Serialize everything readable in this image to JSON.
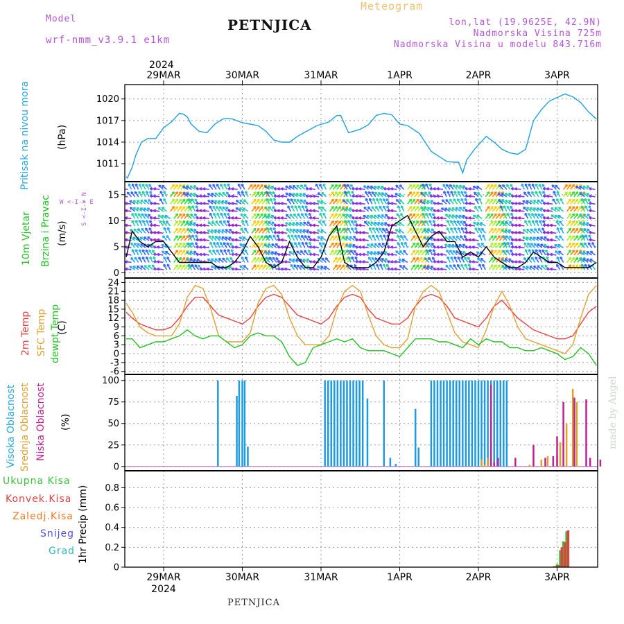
{
  "header": {
    "model_label": "Model",
    "model_name": "wrf-nmm_v3.9.1  e1km",
    "title": "PETNJICA",
    "meteogram": "Meteogram",
    "lonlat": "lon,lat (19.9625E, 42.9N)",
    "altitude": "Nadmorska Visina 725m",
    "model_altitude": "Nadmorska Visina u modelu 843.716m",
    "year_top": "2024",
    "footer_title": "PETNJICA",
    "watermark": "made by Angel"
  },
  "axis_dates": {
    "top": [
      "29MAR",
      "30MAR",
      "31MAR",
      "1APR",
      "2APR",
      "3APR"
    ],
    "bottom": [
      "29MAR",
      "30MAR",
      "31MAR",
      "1APR",
      "2APR",
      "3APR"
    ],
    "bottom_year": "2024"
  },
  "colors": {
    "pressure": "#1aa0e0",
    "temp2m": "#e84040",
    "sfc": "#e0a030",
    "dewpt": "#22c022",
    "high_cloud": "#1e9be0",
    "mid_cloud": "#e0a020",
    "low_cloud": "#c02090",
    "wind_speed": "#000000",
    "gust_marker": "#e05050"
  },
  "panels": {
    "pressure": {
      "label": "Pritisak na nivou mora",
      "unit": "(hPa)",
      "label_color": "#28a8e0"
    },
    "wind": {
      "label1": "10m Vjetar",
      "label2": "Brzina i Pravac",
      "unit": "(m/s)",
      "compass": "W <-I-> E",
      "compass_v": "S <-I-> N"
    },
    "temp": {
      "label1": "2m Temp",
      "label2": "SFC Temp",
      "label3": "dewpt Temp",
      "unit": "(C)"
    },
    "cloud": {
      "label1": "Visoka Oblacnost",
      "label2": "Srednja Oblacnost",
      "label3": "Niska Oblacnost",
      "unit": "(%)"
    },
    "precip": {
      "unit": "1hr Precip (mm)",
      "legend": [
        {
          "label": "Ukupna Kisa",
          "color": "#3cc03c"
        },
        {
          "label": "Konvek.Kisa",
          "color": "#e04040"
        },
        {
          "label": "Zaledj.Kisa",
          "color": "#f07828"
        },
        {
          "label": "Snijeg",
          "color": "#5050e0"
        },
        {
          "label": "Grad",
          "color": "#30b8b8"
        }
      ]
    }
  },
  "chart_data": [
    {
      "type": "line",
      "name": "pressure",
      "ylabel": "Pritisak na nivou mora (hPa)",
      "yticks": [
        1011,
        1014,
        1017,
        1020
      ],
      "ylim": [
        1008.5,
        1022
      ],
      "xlim": [
        0,
        6
      ],
      "series": [
        {
          "name": "Pritisak na nivou mora",
          "x": [
            0,
            0.04,
            0.1,
            0.15,
            0.22,
            0.3,
            0.4,
            0.5,
            0.6,
            0.7,
            0.75,
            0.8,
            0.85,
            0.95,
            1.05,
            1.15,
            1.25,
            1.3,
            1.38,
            1.5,
            1.6,
            1.7,
            1.8,
            1.9,
            2.0,
            2.1,
            2.2,
            2.3,
            2.45,
            2.6,
            2.7,
            2.75,
            2.85,
            3.0,
            3.1,
            3.2,
            3.3,
            3.4,
            3.5,
            3.6,
            3.75,
            3.9,
            4.0,
            4.1,
            4.2,
            4.25,
            4.3,
            4.35,
            4.45,
            4.6,
            4.7,
            4.8,
            4.9,
            5.0,
            5.1,
            5.15,
            5.2,
            5.3,
            5.4,
            5.5,
            5.6,
            5.7,
            5.8,
            5.9,
            6.0
          ],
          "values": [
            1009.2,
            1009.0,
            1010.5,
            1012.3,
            1014.0,
            1014.5,
            1014.5,
            1016.0,
            1016.8,
            1018.0,
            1017.9,
            1017.5,
            1016.5,
            1015.5,
            1015.3,
            1016.5,
            1017.2,
            1017.3,
            1017.2,
            1016.7,
            1016.5,
            1016.3,
            1015.5,
            1014.3,
            1014.0,
            1014.0,
            1014.8,
            1015.4,
            1016.3,
            1016.8,
            1017.7,
            1017.7,
            1015.3,
            1015.8,
            1016.4,
            1017.7,
            1018.0,
            1017.8,
            1016.5,
            1016.3,
            1015.2,
            1012.7,
            1012.0,
            1011.3,
            1011.2,
            1011.2,
            1009.7,
            1011.5,
            1013.0,
            1014.8,
            1014.0,
            1013.0,
            1012.5,
            1012.3,
            1013.0,
            1015.0,
            1017.0,
            1018.5,
            1019.7,
            1020.2,
            1020.7,
            1020.3,
            1019.5,
            1018.2,
            1017.2
          ]
        }
      ]
    },
    {
      "type": "line",
      "name": "wind",
      "ylabel": "10m Vjetar Brzina i Pravac (m/s)",
      "yticks": [
        0,
        5,
        10,
        15
      ],
      "ylim": [
        -1,
        17.5
      ],
      "xlim": [
        0,
        6
      ],
      "series": [
        {
          "name": "Brzina",
          "x": [
            0,
            0.1,
            0.2,
            0.3,
            0.4,
            0.5,
            0.6,
            0.7,
            0.8,
            0.9,
            1.0,
            1.1,
            1.2,
            1.3,
            1.4,
            1.5,
            1.6,
            1.7,
            1.8,
            1.9,
            2.0,
            2.1,
            2.2,
            2.3,
            2.4,
            2.5,
            2.6,
            2.7,
            2.8,
            2.9,
            3.0,
            3.1,
            3.2,
            3.3,
            3.4,
            3.5,
            3.6,
            3.7,
            3.8,
            3.9,
            4.0,
            4.1,
            4.2,
            4.3,
            4.4,
            4.5,
            4.6,
            4.7,
            4.8,
            4.9,
            5.0,
            5.1,
            5.2,
            5.3,
            5.4,
            5.5,
            5.6,
            5.7,
            5.8,
            5.9,
            6.0
          ],
          "values": [
            3,
            8,
            6,
            5,
            6,
            6,
            4,
            2,
            2,
            2,
            2,
            2,
            1,
            1,
            2,
            4,
            7,
            5,
            2,
            1,
            2,
            6,
            3,
            1,
            1,
            3,
            7,
            9,
            2,
            1,
            1,
            1,
            2,
            4,
            9,
            10,
            11,
            8,
            5,
            7,
            8,
            6,
            6,
            3,
            4,
            3,
            5,
            3,
            2,
            1,
            1,
            2,
            4,
            3,
            2,
            2,
            1,
            1,
            1,
            1,
            2
          ]
        }
      ]
    },
    {
      "type": "line",
      "name": "temperature",
      "ylabel": "2m Temp / SFC Temp / dewpt Temp (C)",
      "yticks": [
        -6,
        -3,
        0,
        3,
        6,
        9,
        12,
        15,
        18,
        21,
        24
      ],
      "ylim": [
        -7,
        25.5
      ],
      "xlim": [
        0,
        6
      ],
      "series": [
        {
          "name": "2m Temp",
          "x": [
            0,
            0.1,
            0.2,
            0.3,
            0.4,
            0.5,
            0.6,
            0.7,
            0.8,
            0.9,
            1.0,
            1.1,
            1.2,
            1.3,
            1.4,
            1.5,
            1.6,
            1.7,
            1.8,
            1.9,
            2.0,
            2.1,
            2.2,
            2.3,
            2.4,
            2.5,
            2.6,
            2.7,
            2.8,
            2.9,
            3.0,
            3.1,
            3.2,
            3.3,
            3.4,
            3.5,
            3.6,
            3.7,
            3.8,
            3.9,
            4.0,
            4.1,
            4.2,
            4.3,
            4.4,
            4.5,
            4.6,
            4.7,
            4.8,
            4.9,
            5.0,
            5.1,
            5.2,
            5.3,
            5.4,
            5.5,
            5.6,
            5.7,
            5.8,
            5.9,
            6.0
          ],
          "values": [
            14,
            12,
            10,
            9,
            8,
            8,
            9,
            12,
            16,
            19,
            19,
            16,
            13,
            12,
            11,
            10,
            12,
            16,
            19,
            20,
            19,
            16,
            13,
            12,
            11,
            10,
            12,
            16,
            19,
            20,
            19,
            15,
            12,
            11,
            10,
            10,
            12,
            16,
            19,
            20,
            19,
            16,
            12,
            11,
            10,
            9,
            12,
            16,
            18,
            15,
            12,
            10,
            8,
            7,
            6,
            5,
            5,
            6,
            10,
            14,
            16
          ]
        },
        {
          "name": "SFC Temp",
          "x": [
            0,
            0.1,
            0.2,
            0.3,
            0.4,
            0.5,
            0.6,
            0.7,
            0.8,
            0.9,
            1.0,
            1.1,
            1.2,
            1.3,
            1.4,
            1.5,
            1.6,
            1.7,
            1.8,
            1.9,
            2.0,
            2.1,
            2.2,
            2.3,
            2.4,
            2.5,
            2.6,
            2.7,
            2.8,
            2.9,
            3.0,
            3.1,
            3.2,
            3.3,
            3.4,
            3.5,
            3.6,
            3.7,
            3.8,
            3.9,
            4.0,
            4.1,
            4.2,
            4.3,
            4.4,
            4.5,
            4.6,
            4.7,
            4.8,
            4.9,
            5.0,
            5.1,
            5.2,
            5.3,
            5.4,
            5.5,
            5.6,
            5.7,
            5.8,
            5.9,
            6.0
          ],
          "values": [
            17,
            14,
            9,
            7,
            6,
            6,
            6,
            10,
            19,
            23,
            22,
            15,
            6,
            4,
            4,
            4,
            7,
            17,
            22,
            23,
            20,
            12,
            6,
            3,
            3,
            3,
            6,
            15,
            21,
            23,
            21,
            13,
            6,
            3,
            2,
            2,
            5,
            16,
            21,
            23,
            21,
            14,
            7,
            4,
            3,
            2,
            8,
            16,
            21,
            16,
            9,
            5,
            4,
            3,
            2,
            1,
            0,
            3,
            12,
            20,
            23
          ]
        },
        {
          "name": "dewpt Temp",
          "x": [
            0,
            0.1,
            0.2,
            0.3,
            0.4,
            0.5,
            0.6,
            0.7,
            0.8,
            0.9,
            1.0,
            1.1,
            1.2,
            1.3,
            1.4,
            1.5,
            1.6,
            1.7,
            1.8,
            1.9,
            2.0,
            2.1,
            2.2,
            2.3,
            2.4,
            2.5,
            2.6,
            2.7,
            2.8,
            2.9,
            3.0,
            3.1,
            3.2,
            3.3,
            3.4,
            3.5,
            3.6,
            3.7,
            3.8,
            3.9,
            4.0,
            4.1,
            4.2,
            4.3,
            4.4,
            4.5,
            4.6,
            4.7,
            4.8,
            4.9,
            5.0,
            5.1,
            5.2,
            5.3,
            5.4,
            5.5,
            5.6,
            5.7,
            5.8,
            5.9,
            6.0
          ],
          "values": [
            5,
            5,
            2,
            3,
            4,
            4,
            5,
            6,
            8,
            6,
            5,
            6,
            6,
            4,
            2,
            3,
            6,
            7,
            6,
            6,
            4,
            -1,
            -4,
            -3,
            2,
            3,
            4,
            5,
            4,
            5,
            2,
            1,
            1,
            1,
            0,
            -1,
            2,
            5,
            5,
            5,
            4,
            4,
            3,
            2,
            5,
            3,
            5,
            4,
            4,
            2,
            2,
            1,
            1,
            2,
            1,
            0,
            -2,
            -1,
            2,
            0,
            -4
          ]
        }
      ]
    },
    {
      "type": "bar",
      "name": "cloud",
      "ylabel": "Visoka / Srednja / Niska Oblacnost (%)",
      "yticks": [
        0,
        25,
        50,
        75,
        100
      ],
      "ylim": [
        -5,
        107
      ],
      "xlim": [
        0,
        6
      ],
      "series": [
        {
          "name": "Visoka Oblacnost",
          "x": [
            1.19,
            1.43,
            1.46,
            1.5,
            1.53,
            1.57,
            2.55,
            2.59,
            2.63,
            2.67,
            2.71,
            2.75,
            2.79,
            2.83,
            2.87,
            2.91,
            2.95,
            2.99,
            3.03,
            3.09,
            3.3,
            3.38,
            3.45,
            3.7,
            3.74,
            3.9,
            3.94,
            3.98,
            4.02,
            4.06,
            4.1,
            4.14,
            4.18,
            4.22,
            4.26,
            4.3,
            4.34,
            4.38,
            4.42,
            4.46,
            4.5,
            4.54,
            4.58,
            4.62,
            4.66,
            4.7,
            4.74,
            4.78,
            4.82,
            4.86
          ],
          "values": [
            100,
            82,
            100,
            100,
            100,
            23,
            100,
            100,
            100,
            100,
            100,
            100,
            100,
            100,
            100,
            100,
            100,
            100,
            100,
            79,
            100,
            10,
            3,
            67,
            22,
            100,
            100,
            100,
            100,
            100,
            100,
            100,
            100,
            100,
            100,
            100,
            100,
            100,
            100,
            100,
            100,
            100,
            100,
            100,
            100,
            100,
            100,
            100,
            100,
            100
          ]
        },
        {
          "name": "Srednja Oblacnost",
          "x": [
            4.54,
            4.58,
            4.62,
            5.15,
            5.3,
            5.38,
            5.5,
            5.54,
            5.62,
            5.7,
            5.75
          ],
          "values": [
            8,
            2,
            10,
            2,
            8,
            12,
            12,
            28,
            50,
            90,
            75
          ]
        },
        {
          "name": "Niska Oblacnost",
          "x": [
            4.66,
            4.7,
            4.75,
            4.97,
            5.2,
            5.35,
            5.45,
            5.5,
            5.58,
            5.72,
            5.87,
            5.92,
            6.05
          ],
          "values": [
            95,
            5,
            10,
            10,
            25,
            10,
            12,
            35,
            75,
            80,
            78,
            10,
            8
          ]
        }
      ]
    },
    {
      "type": "bar",
      "name": "precip",
      "ylabel": "1hr Precip (mm)",
      "yticks": [
        0,
        0.2,
        0.4,
        0.6,
        0.8
      ],
      "ylim": [
        0,
        0.97
      ],
      "xlim": [
        0,
        6
      ],
      "series": [
        {
          "name": "Ukupna Kisa",
          "x": [
            5.46,
            5.5,
            5.54,
            5.58,
            5.62
          ],
          "values": [
            0.01,
            0.03,
            0.17,
            0.26,
            0.36
          ]
        },
        {
          "name": "Konvek.Kisa",
          "x": [
            5.48,
            5.52,
            5.56,
            5.6,
            5.64
          ],
          "values": [
            0.01,
            0.02,
            0.2,
            0.25,
            0.37
          ]
        }
      ]
    }
  ]
}
